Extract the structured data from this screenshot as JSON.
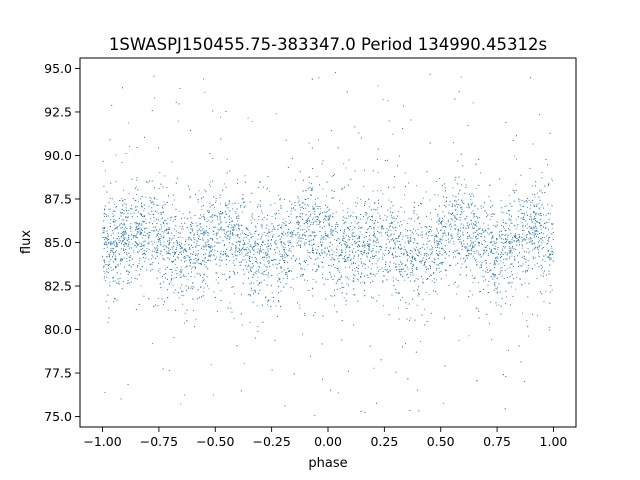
{
  "chart_data": {
    "type": "scatter",
    "title": "1SWASPJ150455.75-383347.0 Period 134990.45312s",
    "xlabel": "phase",
    "ylabel": "flux",
    "xlim": [
      -1.1,
      1.1
    ],
    "ylim": [
      74.4,
      95.6
    ],
    "x_ticks": [
      -1.0,
      -0.75,
      -0.5,
      -0.25,
      0.0,
      0.25,
      0.5,
      0.75,
      1.0
    ],
    "x_tick_labels": [
      "−1.00",
      "−0.75",
      "−0.50",
      "−0.25",
      "0.00",
      "0.25",
      "0.50",
      "0.75",
      "1.00"
    ],
    "y_ticks": [
      75.0,
      77.5,
      80.0,
      82.5,
      85.0,
      87.5,
      90.0,
      92.5,
      95.0
    ],
    "y_tick_labels": [
      "75.0",
      "77.5",
      "80.0",
      "82.5",
      "85.0",
      "87.5",
      "90.0",
      "92.5",
      "95.0"
    ],
    "grid": false,
    "legend": "none",
    "point_color": "#1f77b4",
    "phase_range": [
      -1.0,
      1.0
    ],
    "flux_mean": 85.0,
    "flux_range": [
      75.0,
      95.0
    ],
    "series": [
      {
        "values_described_as_profile": true,
        "x": [
          -1.0,
          -0.95,
          -0.9,
          -0.85,
          -0.8,
          -0.75,
          -0.7,
          -0.65,
          -0.6,
          -0.55,
          -0.5,
          -0.45,
          -0.4,
          -0.35,
          -0.3,
          -0.25,
          -0.2,
          -0.15,
          -0.1,
          -0.05,
          0.0,
          0.05,
          0.1,
          0.15,
          0.2,
          0.25,
          0.3,
          0.35,
          0.4,
          0.45,
          0.5,
          0.55,
          0.6,
          0.65,
          0.7,
          0.75,
          0.8,
          0.85,
          0.9,
          0.95,
          1.0
        ],
        "y_mean": [
          84.7,
          84.9,
          85.3,
          85.6,
          85.8,
          85.3,
          84.8,
          84.5,
          84.4,
          84.9,
          85.4,
          85.6,
          85.2,
          84.6,
          84.3,
          84.2,
          84.7,
          85.4,
          85.9,
          85.7,
          85.1,
          84.4,
          84.5,
          85.0,
          85.2,
          85.3,
          85.0,
          84.7,
          84.4,
          84.5,
          85.0,
          85.6,
          85.6,
          85.2,
          84.6,
          84.3,
          84.6,
          85.3,
          85.7,
          85.6,
          85.0
        ]
      }
    ]
  }
}
